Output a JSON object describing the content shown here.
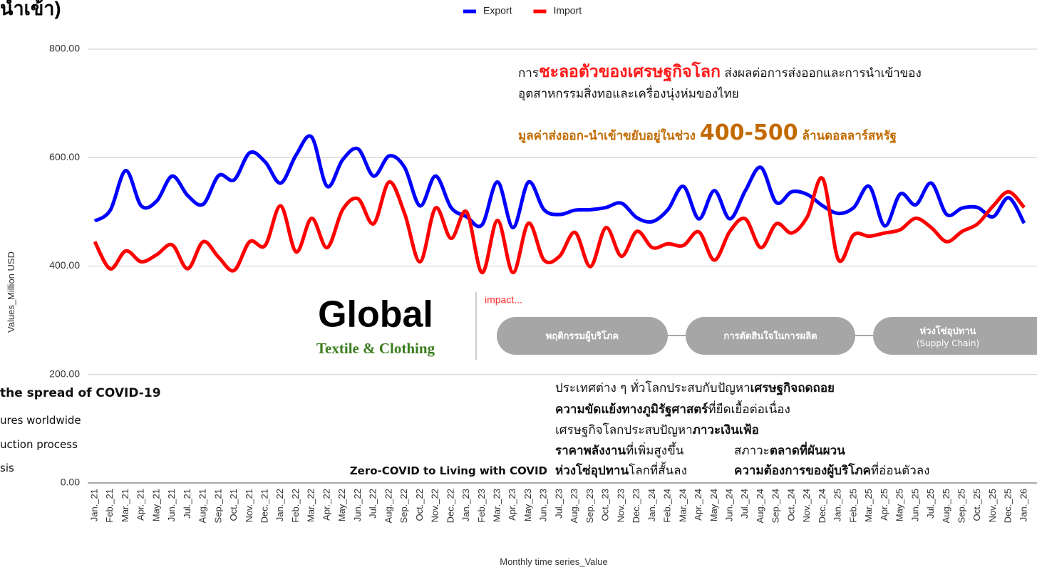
{
  "chart_data": {
    "type": "line",
    "title": "นำเข้า)",
    "y_label": "Values_Million USD",
    "x_label": "Monthly time series_Value",
    "legend": "top",
    "grid": true,
    "ylim": [
      0,
      800
    ],
    "yticks": [
      {
        "value": 0,
        "label": "0.00"
      },
      {
        "value": 200,
        "label": "200.00"
      },
      {
        "value": 400,
        "label": "400.00"
      },
      {
        "value": 600,
        "label": "600.00"
      },
      {
        "value": 800,
        "label": "800.00"
      }
    ],
    "categories": [
      "Jan._21",
      "Feb._21",
      "Mar._21",
      "Apr._21",
      "May_21",
      "Jun._21",
      "Jul._21",
      "Aug._21",
      "Sep._21",
      "Oct._21",
      "Nov._21",
      "Dec._21",
      "Jan._22",
      "Feb._22",
      "Mar._22",
      "Apr._22",
      "May_22",
      "Jun._22",
      "Jul._22",
      "Aug._22",
      "Sep._22",
      "Oct._22",
      "Nov._22",
      "Dec._22",
      "Jan._23",
      "Feb._23",
      "Mar._23",
      "Apr._23",
      "May_23",
      "Jun._23",
      "Jul._23",
      "Aug._23",
      "Sep._23",
      "Oct._23",
      "Nov._23",
      "Dec._23",
      "Jan._24",
      "Feb._24",
      "Mar._24",
      "Apr._24",
      "May_24",
      "Jun._24",
      "Jul._24",
      "Aug._24",
      "Sep._24",
      "Oct._24",
      "Nov._24",
      "Dec._24",
      "Jan._25",
      "Feb._25",
      "Mar._25",
      "Apr._25",
      "May_25",
      "Jun._25",
      "Jul._25",
      "Aug._25",
      "Sep._25",
      "Oct._25",
      "Nov._25",
      "Dec._25",
      "Jan._26"
    ],
    "series": [
      {
        "name": "Export",
        "color": "#0000ff",
        "values": [
          483,
          503,
          576,
          511,
          520,
          566,
          530,
          514,
          567,
          559,
          609,
          592,
          553,
          605,
          638,
          547,
          596,
          616,
          566,
          603,
          582,
          511,
          566,
          508,
          491,
          476,
          555,
          471,
          555,
          504,
          495,
          503,
          504,
          508,
          516,
          489,
          482,
          504,
          547,
          487,
          539,
          487,
          539,
          582,
          517,
          537,
          532,
          511,
          497,
          508,
          547,
          474,
          533,
          513,
          553,
          495,
          507,
          508,
          491,
          526,
          479
        ]
      },
      {
        "name": "Import",
        "color": "#ff0000",
        "values": [
          445,
          395,
          428,
          408,
          421,
          439,
          395,
          445,
          416,
          392,
          445,
          438,
          511,
          426,
          488,
          434,
          504,
          524,
          478,
          555,
          497,
          408,
          507,
          451,
          500,
          388,
          484,
          388,
          479,
          411,
          418,
          462,
          399,
          471,
          418,
          464,
          434,
          441,
          438,
          463,
          411,
          464,
          487,
          434,
          478,
          461,
          491,
          561,
          412,
          458,
          455,
          461,
          467,
          488,
          471,
          445,
          464,
          478,
          511,
          537,
          508
        ]
      }
    ]
  },
  "annotations": {
    "headline": [
      "การ",
      "ชะลอตัวของเศรษฐกิจโลก",
      " ส่งผลต่อการส่งออกและการนำเข้าของ"
    ],
    "headline_2": "อุตสาหกรรมสิ่งทอและเครื่องนุ่งห่มของไทย",
    "range": [
      "มูลค่าส่งออก-นำเข้าขยับอยู่ในช่วง ",
      "400-500",
      " ล้านดอลลาร์สหรัฐ"
    ],
    "covid_title": "the spread of COVID-19",
    "covid_lines": [
      "ures worldwide",
      "uction process",
      "sis"
    ],
    "zero_covid": "Zero-COVID to Living with COVID",
    "factors": [
      [
        "ประเทศต่าง ๆ ทั่วโลกประสบกับปัญหา",
        "เศรษฐกิจถดถอย"
      ],
      [
        "ความขัดแย้งทางภูมิรัฐศาสตร์",
        "ที่ยืดเยื้อต่อเนื่อง"
      ],
      [
        "เศรษฐกิจโลกประสบปัญหา",
        "ภาวะเงินเฟ้อ"
      ],
      [
        "ราคาพลังงาน",
        "ที่เพิ่มสูงขึ้น"
      ],
      [
        "สภาวะ",
        "ตลาดที่ผันผวน"
      ],
      [
        "ห่วงโซ่อุปทาน",
        "โลกที่สั้นลง"
      ],
      [
        "ความต้องการของผู้บริโภค",
        "ที่อ่อนตัวลง"
      ]
    ],
    "global": "Global",
    "global_sub": "Textile & Clothing",
    "impact": "impact...",
    "impacts": [
      "พฤติกรรมผู้บริโภค",
      "การตัดสินใจในการผลิต",
      "ห่วงโซ่อุปทาน"
    ],
    "impact_sub": "(Supply Chain)"
  }
}
